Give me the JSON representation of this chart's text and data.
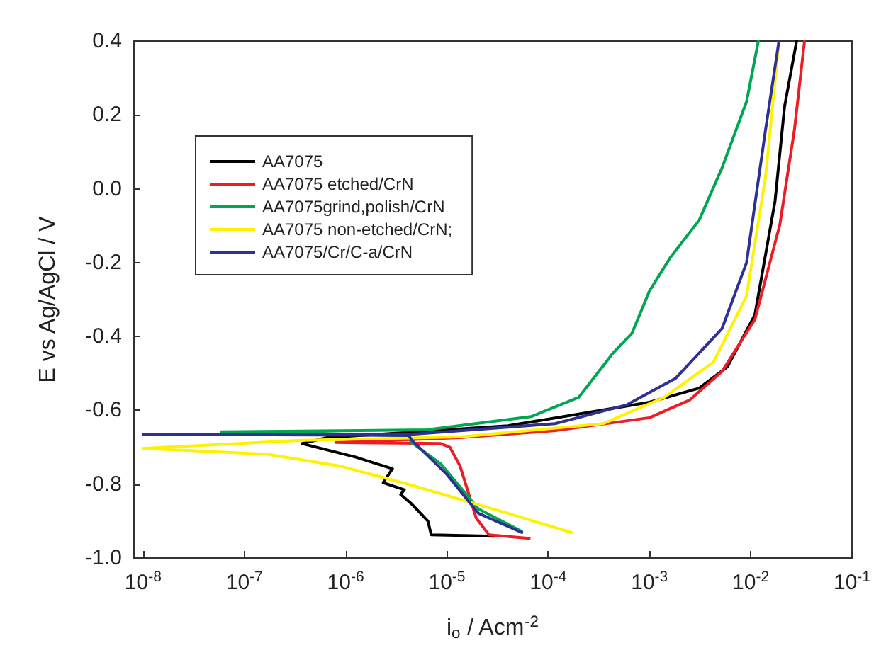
{
  "chart_data": {
    "type": "line",
    "xlabel": "i$_{o}$ / Acm$^{-2}$",
    "ylabel": "E vs Ag/AgCl / V",
    "log": "x",
    "xlim": [
      8e-09,
      0.1
    ],
    "xticks": [
      {
        "value": 1e-08,
        "label": "10$^{-8}$"
      },
      {
        "value": 1e-07,
        "label": "10$^{-7}$"
      },
      {
        "value": 1e-06,
        "label": "10$^{-6}$"
      },
      {
        "value": 1e-05,
        "label": "10$^{-5}$"
      },
      {
        "value": 0.0001,
        "label": "10$^{-4}$"
      },
      {
        "value": 0.001,
        "label": "10$^{-3}$"
      },
      {
        "value": 0.01,
        "label": "10$^{-2}$"
      },
      {
        "value": 0.1,
        "label": "10$^{-1}$"
      }
    ],
    "ylim": [
      -1.0,
      0.4
    ],
    "yticks": [
      {
        "value": -1.0,
        "label": "-1.0"
      },
      -0.8,
      -0.6,
      -0.4,
      -0.2,
      {
        "value": 0,
        "label": "0.0"
      },
      0.2,
      0.4
    ],
    "grid": false,
    "legend": "top left",
    "marker": "none",
    "line_style": "solid",
    "series": [
      {
        "name": "AA7075",
        "color": "#000000",
        "x": [
          3e-05,
          7e-06,
          6.5e-06,
          4.5e-06,
          3.5e-06,
          3.8e-06,
          2.35e-06,
          2.9e-06,
          1.23e-06,
          3.7e-07,
          6.5e-07,
          4.5e-06,
          4e-05,
          0.001,
          0.0031,
          0.0059,
          0.011,
          0.0174,
          0.0216,
          0.0284
        ],
        "values": [
          -0.941,
          -0.937,
          -0.9,
          -0.854,
          -0.828,
          -0.815,
          -0.796,
          -0.758,
          -0.726,
          -0.69,
          -0.674,
          -0.659,
          -0.642,
          -0.578,
          -0.54,
          -0.482,
          -0.341,
          -0.033,
          0.223,
          0.4
        ]
      },
      {
        "name": "AA7075 etched/CrN",
        "color": "#ee1c24",
        "x": [
          6.5e-05,
          2.6e-05,
          1.95e-05,
          1.35e-05,
          1.07e-05,
          8.7e-06,
          8e-07,
          1.35e-05,
          0.000117,
          0.001,
          0.0025,
          0.0052,
          0.011,
          0.0194,
          0.027,
          0.034
        ],
        "values": [
          -0.947,
          -0.937,
          -0.892,
          -0.751,
          -0.7,
          -0.69,
          -0.687,
          -0.674,
          -0.655,
          -0.62,
          -0.572,
          -0.495,
          -0.354,
          -0.097,
          0.159,
          0.4
        ]
      },
      {
        "name": "AA7075grind,polish/CrN",
        "color": "#00a651",
        "x": [
          5.5e-05,
          2.05e-05,
          8.7e-06,
          4.5e-06,
          4e-06,
          5.9e-08,
          6.3e-06,
          6.8e-05,
          0.0002,
          0.00044,
          0.00067,
          0.001,
          0.0016,
          0.0031,
          0.0052,
          0.0091,
          0.0119
        ],
        "values": [
          -0.928,
          -0.867,
          -0.745,
          -0.687,
          -0.668,
          -0.658,
          -0.653,
          -0.617,
          -0.565,
          -0.444,
          -0.392,
          -0.277,
          -0.187,
          -0.085,
          0.056,
          0.236,
          0.4
        ]
      },
      {
        "name": "AA7075 non-etched/CrN;",
        "color": "#fff200",
        "x": [
          0.00017,
          4e-05,
          4.5e-06,
          8.9e-07,
          1.7e-07,
          1e-08,
          3.7e-07,
          1.35e-05,
          0.00035,
          0.0014,
          0.0043,
          0.0091,
          0.014,
          0.019
        ],
        "values": [
          -0.931,
          -0.879,
          -0.803,
          -0.751,
          -0.719,
          -0.703,
          -0.681,
          -0.672,
          -0.636,
          -0.565,
          -0.469,
          -0.29,
          0.031,
          0.4
        ]
      },
      {
        "name": "AA7075/Cr/C-a/CrN",
        "color": "#2e3192",
        "x": [
          5.5e-05,
          2.05e-05,
          9.8e-06,
          4.5e-06,
          4.2e-06,
          1e-08,
          4.5e-06,
          0.000117,
          0.0006,
          0.0018,
          0.0052,
          0.0091,
          0.014,
          0.019
        ],
        "values": [
          -0.931,
          -0.879,
          -0.771,
          -0.681,
          -0.668,
          -0.665,
          -0.665,
          -0.636,
          -0.585,
          -0.514,
          -0.379,
          -0.2,
          0.159,
          0.4
        ]
      }
    ]
  }
}
